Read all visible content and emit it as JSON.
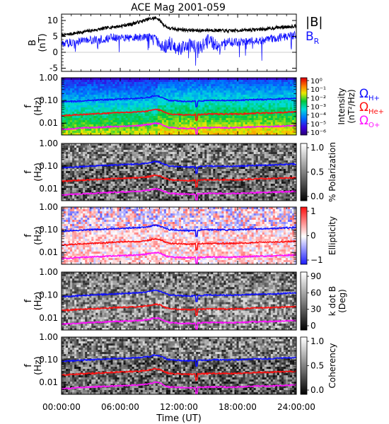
{
  "title": "ACE Mag 2001-059",
  "colors": {
    "B_total": "#000000",
    "B_R": "#1414ff",
    "H": "#1010ff",
    "He": "#ff1010",
    "O": "#ff10ff"
  },
  "chart_data": [
    {
      "type": "line",
      "panel": "B",
      "ylabel": "B",
      "yunit": "(nT)",
      "ylim": [
        -6,
        12
      ],
      "yticks": [
        "-5",
        "0",
        "5",
        "10"
      ],
      "ytick_values": [
        -5,
        0,
        5,
        10
      ],
      "legend": [
        "|B|",
        "B",
        "R"
      ],
      "series": [
        {
          "name": "|B|",
          "x": [
            0,
            1,
            2,
            3,
            4,
            5,
            6,
            7,
            8,
            9,
            9.8,
            10.5,
            11,
            12,
            13,
            14,
            15,
            16,
            17,
            18,
            19,
            20,
            21,
            22,
            23,
            24
          ],
          "values": [
            5.3,
            5.8,
            6.3,
            6.8,
            7.3,
            7.9,
            8.2,
            8.8,
            9.6,
            10.5,
            10.8,
            8.5,
            7.5,
            7.2,
            7.0,
            6.8,
            7.0,
            6.9,
            6.7,
            6.9,
            7.0,
            7.2,
            7.3,
            7.8,
            8.0,
            8.3
          ]
        },
        {
          "name": "B_R",
          "x": [
            0,
            1,
            2,
            3,
            4,
            5,
            6,
            7,
            8,
            9,
            9.8,
            10.5,
            11,
            12,
            13,
            14,
            15,
            16,
            17,
            18,
            19,
            20,
            21,
            22,
            23,
            24
          ],
          "values": [
            2.5,
            3.2,
            3.5,
            3.8,
            4.0,
            4.5,
            4.8,
            4.5,
            4.6,
            4.8,
            4.2,
            1.5,
            3.0,
            1.0,
            2.5,
            1.5,
            4.0,
            2.0,
            3.5,
            3.0,
            3.5,
            3.5,
            4.0,
            4.5,
            5.0,
            5.5
          ]
        }
      ]
    },
    {
      "type": "heatmap",
      "panel": "intensity",
      "ylabel": "f",
      "yunit": "(Hz)",
      "ylog": true,
      "ylim": [
        0.003,
        1.0
      ],
      "yticks": [
        "1.00",
        "0.10",
        "0.01"
      ],
      "ytick_values": [
        1.0,
        0.1,
        0.01
      ],
      "colorbar_label": [
        "Intensity",
        "(nT²/Hz)"
      ],
      "colorbar_ticks": [
        "10⁰",
        "10⁻¹",
        "10⁻²",
        "10⁻³",
        "10⁻⁴",
        "10⁻⁵",
        "10⁻⁶"
      ],
      "colorbar_tick_values": [
        1,
        0.1,
        0.01,
        0.001,
        0.0001,
        1e-05,
        1e-06
      ],
      "colormap": "rainbow",
      "legend": [
        "Ω",
        "H+",
        "Ω",
        "He+",
        "Ω",
        "O+"
      ]
    },
    {
      "type": "heatmap",
      "panel": "polarization",
      "ylabel": "f",
      "yunit": "(Hz)",
      "ylog": true,
      "ylim": [
        0.003,
        1.0
      ],
      "yticks": [
        "1.00",
        "0.10",
        "0.01"
      ],
      "ytick_values": [
        1.0,
        0.1,
        0.01
      ],
      "colorbar_label": [
        "% Polarization"
      ],
      "colorbar_ticks": [
        "1.0",
        "0.5",
        "0.0"
      ],
      "colorbar_tick_values": [
        1.0,
        0.5,
        0.0
      ],
      "colormap": "gray"
    },
    {
      "type": "heatmap",
      "panel": "ellipticity",
      "ylabel": "f",
      "yunit": "(Hz)",
      "ylog": true,
      "ylim": [
        0.003,
        1.0
      ],
      "yticks": [
        "1.00",
        "0.10",
        "0.01"
      ],
      "ytick_values": [
        1.0,
        0.1,
        0.01
      ],
      "colorbar_label": [
        "Ellipticity"
      ],
      "colorbar_ticks": [
        "1",
        "0",
        "−1"
      ],
      "colorbar_tick_values": [
        1,
        0,
        -1
      ],
      "colormap": "bluewhitered"
    },
    {
      "type": "heatmap",
      "panel": "kdotb",
      "ylabel": "f",
      "yunit": "(Hz)",
      "ylog": true,
      "ylim": [
        0.003,
        1.0
      ],
      "yticks": [
        "1.00",
        "0.10",
        "0.01"
      ],
      "ytick_values": [
        1.0,
        0.1,
        0.01
      ],
      "colorbar_label": [
        "k dot B",
        "(Deg)"
      ],
      "colorbar_ticks": [
        "90",
        "60",
        "30",
        "0"
      ],
      "colorbar_tick_values": [
        90,
        60,
        30,
        0
      ],
      "colormap": "gray"
    },
    {
      "type": "heatmap",
      "panel": "coherency",
      "ylabel": "f",
      "yunit": "(Hz)",
      "ylog": true,
      "ylim": [
        0.003,
        1.0
      ],
      "yticks": [
        "1.00",
        "0.10",
        "0.01"
      ],
      "ytick_values": [
        1.0,
        0.1,
        0.01
      ],
      "colorbar_label": [
        "Coherency"
      ],
      "colorbar_ticks": [
        "1.0",
        "0.5",
        "0.0"
      ],
      "colorbar_tick_values": [
        1.0,
        0.5,
        0.0
      ],
      "colormap": "gray"
    }
  ],
  "gyrofrequency_lines": {
    "x": [
      0,
      2,
      4,
      6,
      8,
      9,
      9.5,
      10,
      10.5,
      11,
      12,
      13,
      14,
      15,
      16,
      17,
      18,
      19,
      20,
      21,
      22,
      23,
      24
    ],
    "H": [
      0.085,
      0.095,
      0.105,
      0.115,
      0.125,
      0.14,
      0.16,
      0.15,
      0.12,
      0.1,
      0.095,
      0.09,
      0.095,
      0.1,
      0.1,
      0.098,
      0.1,
      0.105,
      0.11,
      0.11,
      0.115,
      0.12,
      0.125
    ],
    "He": [
      0.021,
      0.024,
      0.026,
      0.029,
      0.031,
      0.035,
      0.04,
      0.038,
      0.03,
      0.025,
      0.024,
      0.023,
      0.024,
      0.025,
      0.025,
      0.025,
      0.025,
      0.026,
      0.028,
      0.028,
      0.029,
      0.03,
      0.031
    ],
    "O": [
      0.0053,
      0.006,
      0.0066,
      0.0072,
      0.0078,
      0.0088,
      0.01,
      0.0095,
      0.0075,
      0.0063,
      0.006,
      0.0058,
      0.006,
      0.0063,
      0.0063,
      0.0062,
      0.0063,
      0.0066,
      0.0069,
      0.0069,
      0.0072,
      0.0075,
      0.0078
    ]
  },
  "time_axis": {
    "label": "Time (UT)",
    "xlim": [
      0,
      24
    ],
    "ticks": [
      "00:00:00",
      "06:00:00",
      "12:00:00",
      "18:00:00",
      "24:00:00"
    ],
    "tick_values": [
      0,
      6,
      12,
      18,
      24
    ]
  }
}
